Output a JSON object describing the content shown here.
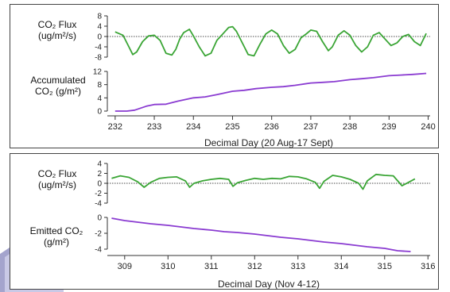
{
  "colors": {
    "flux": "#3aa535",
    "accumulated": "#8a3bd1",
    "axis": "#333333",
    "frame": "#444444"
  },
  "panels": [
    {
      "flux_label_line1": "CO₂ Flux",
      "flux_label_line2": "(ug/m²/s)",
      "cum_label_line1": "Accumulated",
      "cum_label_line2": "CO₂ (g/m²)",
      "xlabel": "Decimal Day (20 Aug-17 Sept)"
    },
    {
      "flux_label_line1": "CO₂ Flux",
      "flux_label_line2": "(ug/m²/s)",
      "cum_label_line1": "Emitted CO₂",
      "cum_label_line2": "(g/m²)",
      "xlabel": "Decimal Day (Nov 4-12)"
    }
  ],
  "chart_data": [
    {
      "type": "line",
      "xlabel": "Decimal Day (20 Aug-17 Sept)",
      "xlim": [
        231.8,
        240.05
      ],
      "xticks": [
        232,
        233,
        234,
        235,
        236,
        237,
        238,
        239,
        240
      ],
      "flux_axis": {
        "ylabel": "CO₂ Flux (ug/m²/s)",
        "ylim": [
          -8,
          8
        ],
        "ticks": [
          8,
          4,
          0,
          -4,
          -8
        ],
        "tick_labels": [
          "8",
          "4",
          "0",
          "-4",
          "-8"
        ],
        "zero_line": true
      },
      "accum_axis": {
        "ylabel": "Accumulated CO₂ (g/m²)",
        "ylim": [
          0,
          12
        ],
        "ticks": [
          12,
          8,
          4,
          0
        ],
        "tick_labels": [
          "12",
          "8",
          "4",
          "0"
        ]
      },
      "series": [
        {
          "x": [
            232.0,
            232.2,
            232.35,
            232.45,
            232.55,
            232.7,
            232.85,
            233.0,
            233.15,
            233.3,
            233.45,
            233.55,
            233.65,
            233.75,
            233.9,
            234.0,
            234.15,
            234.3,
            234.45,
            234.6,
            234.75,
            234.9,
            235.0,
            235.1,
            235.25,
            235.4,
            235.55,
            235.7,
            235.85,
            236.0,
            236.15,
            236.3,
            236.45,
            236.6,
            236.75,
            236.9,
            237.0,
            237.15,
            237.3,
            237.45,
            237.55,
            237.7,
            237.85,
            238.0,
            238.15,
            238.3,
            238.45,
            238.6,
            238.75,
            238.9,
            239.05,
            239.2,
            239.35,
            239.5,
            239.65,
            239.8,
            239.95
          ],
          "y": [
            1.8,
            0.5,
            -4.0,
            -7.0,
            -6.0,
            -2.0,
            0.2,
            0.5,
            -1.5,
            -6.5,
            -7.2,
            -5.0,
            -1.0,
            1.5,
            2.8,
            0.2,
            -4.0,
            -7.5,
            -6.5,
            -1.5,
            1.0,
            3.5,
            3.8,
            2.0,
            -2.5,
            -7.0,
            -7.5,
            -3.0,
            1.0,
            2.5,
            1.0,
            -3.5,
            -6.5,
            -5.0,
            -0.5,
            1.2,
            2.5,
            2.0,
            -2.0,
            -5.5,
            -4.0,
            0.5,
            2.2,
            0.5,
            -3.5,
            -6.0,
            -4.0,
            0.5,
            1.5,
            -1.0,
            -3.5,
            -2.5,
            0.0,
            0.8,
            -2.0,
            -3.5,
            1.2
          ]
        },
        {
          "x": [
            232.0,
            232.3,
            232.5,
            232.8,
            233.0,
            233.3,
            233.6,
            234.0,
            234.3,
            234.6,
            235.0,
            235.3,
            235.6,
            236.0,
            236.3,
            236.6,
            237.0,
            237.3,
            237.6,
            238.0,
            238.3,
            238.6,
            239.0,
            239.3,
            239.6,
            239.95
          ],
          "y": [
            0.0,
            0.0,
            0.3,
            1.5,
            2.0,
            2.1,
            3.0,
            4.0,
            4.3,
            5.0,
            6.0,
            6.3,
            6.8,
            7.2,
            7.4,
            7.8,
            8.5,
            8.7,
            8.9,
            9.5,
            9.8,
            10.1,
            10.7,
            10.9,
            11.1,
            11.4
          ]
        }
      ]
    },
    {
      "type": "line",
      "xlabel": "Decimal Day (Nov 4-12)",
      "xlim": [
        308.6,
        316.05
      ],
      "xticks": [
        309,
        310,
        311,
        312,
        313,
        314,
        315,
        316
      ],
      "flux_axis": {
        "ylabel": "CO₂ Flux (ug/m²/s)",
        "ylim": [
          -4,
          4
        ],
        "ticks": [
          4,
          2,
          0,
          -2,
          -4
        ],
        "tick_labels": [
          "4",
          "2",
          "0",
          "-2",
          "-4"
        ],
        "zero_line": true
      },
      "accum_axis": {
        "ylabel": "Emitted CO₂ (g/m²)",
        "ylim": [
          -4,
          0
        ],
        "ticks": [
          0,
          -2,
          -4
        ],
        "tick_labels": [
          "0",
          "-2",
          "-4"
        ]
      },
      "series": [
        {
          "x": [
            308.7,
            308.9,
            309.1,
            309.3,
            309.45,
            309.6,
            309.8,
            310.0,
            310.2,
            310.4,
            310.5,
            310.6,
            310.8,
            311.0,
            311.2,
            311.4,
            311.5,
            311.6,
            311.8,
            312.0,
            312.2,
            312.4,
            312.6,
            312.8,
            313.0,
            313.2,
            313.4,
            313.5,
            313.6,
            313.8,
            314.0,
            314.2,
            314.4,
            314.5,
            314.6,
            314.8,
            315.0,
            315.2,
            315.4,
            315.55,
            315.7
          ],
          "y": [
            1.0,
            1.5,
            1.2,
            0.3,
            -0.8,
            0.2,
            1.0,
            1.2,
            1.3,
            0.5,
            -0.8,
            0.0,
            0.5,
            0.8,
            1.0,
            0.8,
            -0.6,
            0.1,
            0.6,
            1.0,
            0.8,
            1.0,
            0.9,
            1.4,
            1.3,
            0.9,
            0.2,
            -1.0,
            0.4,
            1.6,
            1.3,
            0.8,
            0.0,
            -1.2,
            0.5,
            1.8,
            1.6,
            1.5,
            -0.5,
            0.2,
            0.9
          ]
        },
        {
          "x": [
            308.7,
            309.0,
            309.3,
            309.6,
            310.0,
            310.3,
            310.6,
            311.0,
            311.3,
            311.6,
            312.0,
            312.3,
            312.6,
            313.0,
            313.3,
            313.6,
            314.0,
            314.3,
            314.6,
            315.0,
            315.3,
            315.6
          ],
          "y": [
            -0.1,
            -0.4,
            -0.6,
            -0.8,
            -1.0,
            -1.2,
            -1.4,
            -1.6,
            -1.8,
            -1.9,
            -2.1,
            -2.3,
            -2.5,
            -2.7,
            -2.9,
            -3.1,
            -3.3,
            -3.5,
            -3.7,
            -3.9,
            -4.2,
            -4.3
          ]
        }
      ]
    }
  ]
}
